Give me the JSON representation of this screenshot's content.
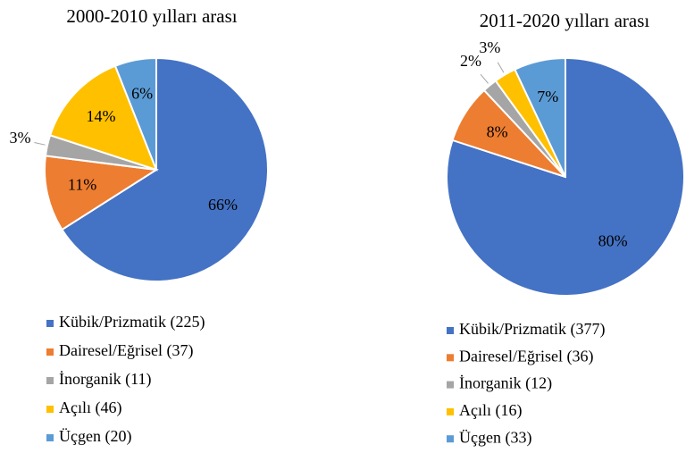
{
  "chart_data": [
    {
      "type": "pie",
      "title": "2000-2010 yılları arası",
      "categories": [
        "Kübik/Prizmatik (225)",
        "Dairesel/Eğrisel (37)",
        "İnorganik (11)",
        "Açılı (46)",
        "Üçgen (20)"
      ],
      "values": [
        66,
        11,
        3,
        14,
        6
      ],
      "value_labels": [
        "66%",
        "11%",
        "3%",
        "14%",
        "6%"
      ],
      "colors": [
        "#4472c4",
        "#ed7d31",
        "#a5a5a5",
        "#ffc000",
        "#5b9bd5"
      ]
    },
    {
      "type": "pie",
      "title": "2011-2020 yılları arası",
      "categories": [
        "Kübik/Prizmatik (377)",
        "Dairesel/Eğrisel (36)",
        "İnorganik (12)",
        "Açılı (16)",
        "Üçgen (33)"
      ],
      "values": [
        80,
        8,
        2,
        3,
        7
      ],
      "value_labels": [
        "80%",
        "8%",
        "2%",
        "3%",
        "7%"
      ],
      "colors": [
        "#4472c4",
        "#ed7d31",
        "#a5a5a5",
        "#ffc000",
        "#5b9bd5"
      ]
    }
  ]
}
